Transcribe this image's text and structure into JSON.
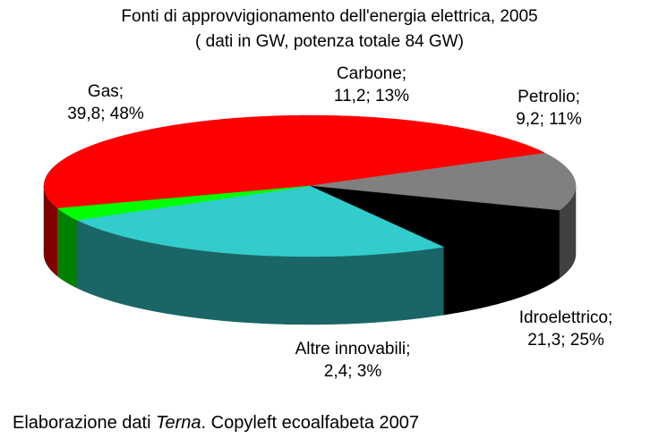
{
  "chart_data": {
    "type": "pie",
    "style": "3d",
    "title": "Fonti di approvvigionamento dell'energia elettrica, 2005",
    "subtitle": "( dati in GW, potenza totale 84 GW)",
    "slices": [
      {
        "label": "Gas;",
        "value_text": "39,8; 48%",
        "value": 39.8,
        "percent": 48,
        "color": "#ff0000",
        "side_color": "#800000"
      },
      {
        "label": "Carbone;",
        "value_text": "11,2; 13%",
        "value": 11.2,
        "percent": 13,
        "color": "#808080",
        "side_color": "#404040"
      },
      {
        "label": "Petrolio;",
        "value_text": "9,2; 11%",
        "value": 9.2,
        "percent": 11,
        "color": "#000000",
        "side_color": "#000000"
      },
      {
        "label": "Idroelettrico;",
        "value_text": "21,3; 25%",
        "value": 21.3,
        "percent": 25,
        "color": "#33cccc",
        "side_color": "#1a6666"
      },
      {
        "label": "Altre innovabili;",
        "value_text": "2,4; 3%",
        "value": 2.4,
        "percent": 3,
        "color": "#00ff00",
        "side_color": "#008000"
      }
    ]
  },
  "footer": {
    "prefix": "Elaborazione dati ",
    "source": "Terna",
    "suffix": ". Copyleft ecoalfabeta 2007"
  }
}
